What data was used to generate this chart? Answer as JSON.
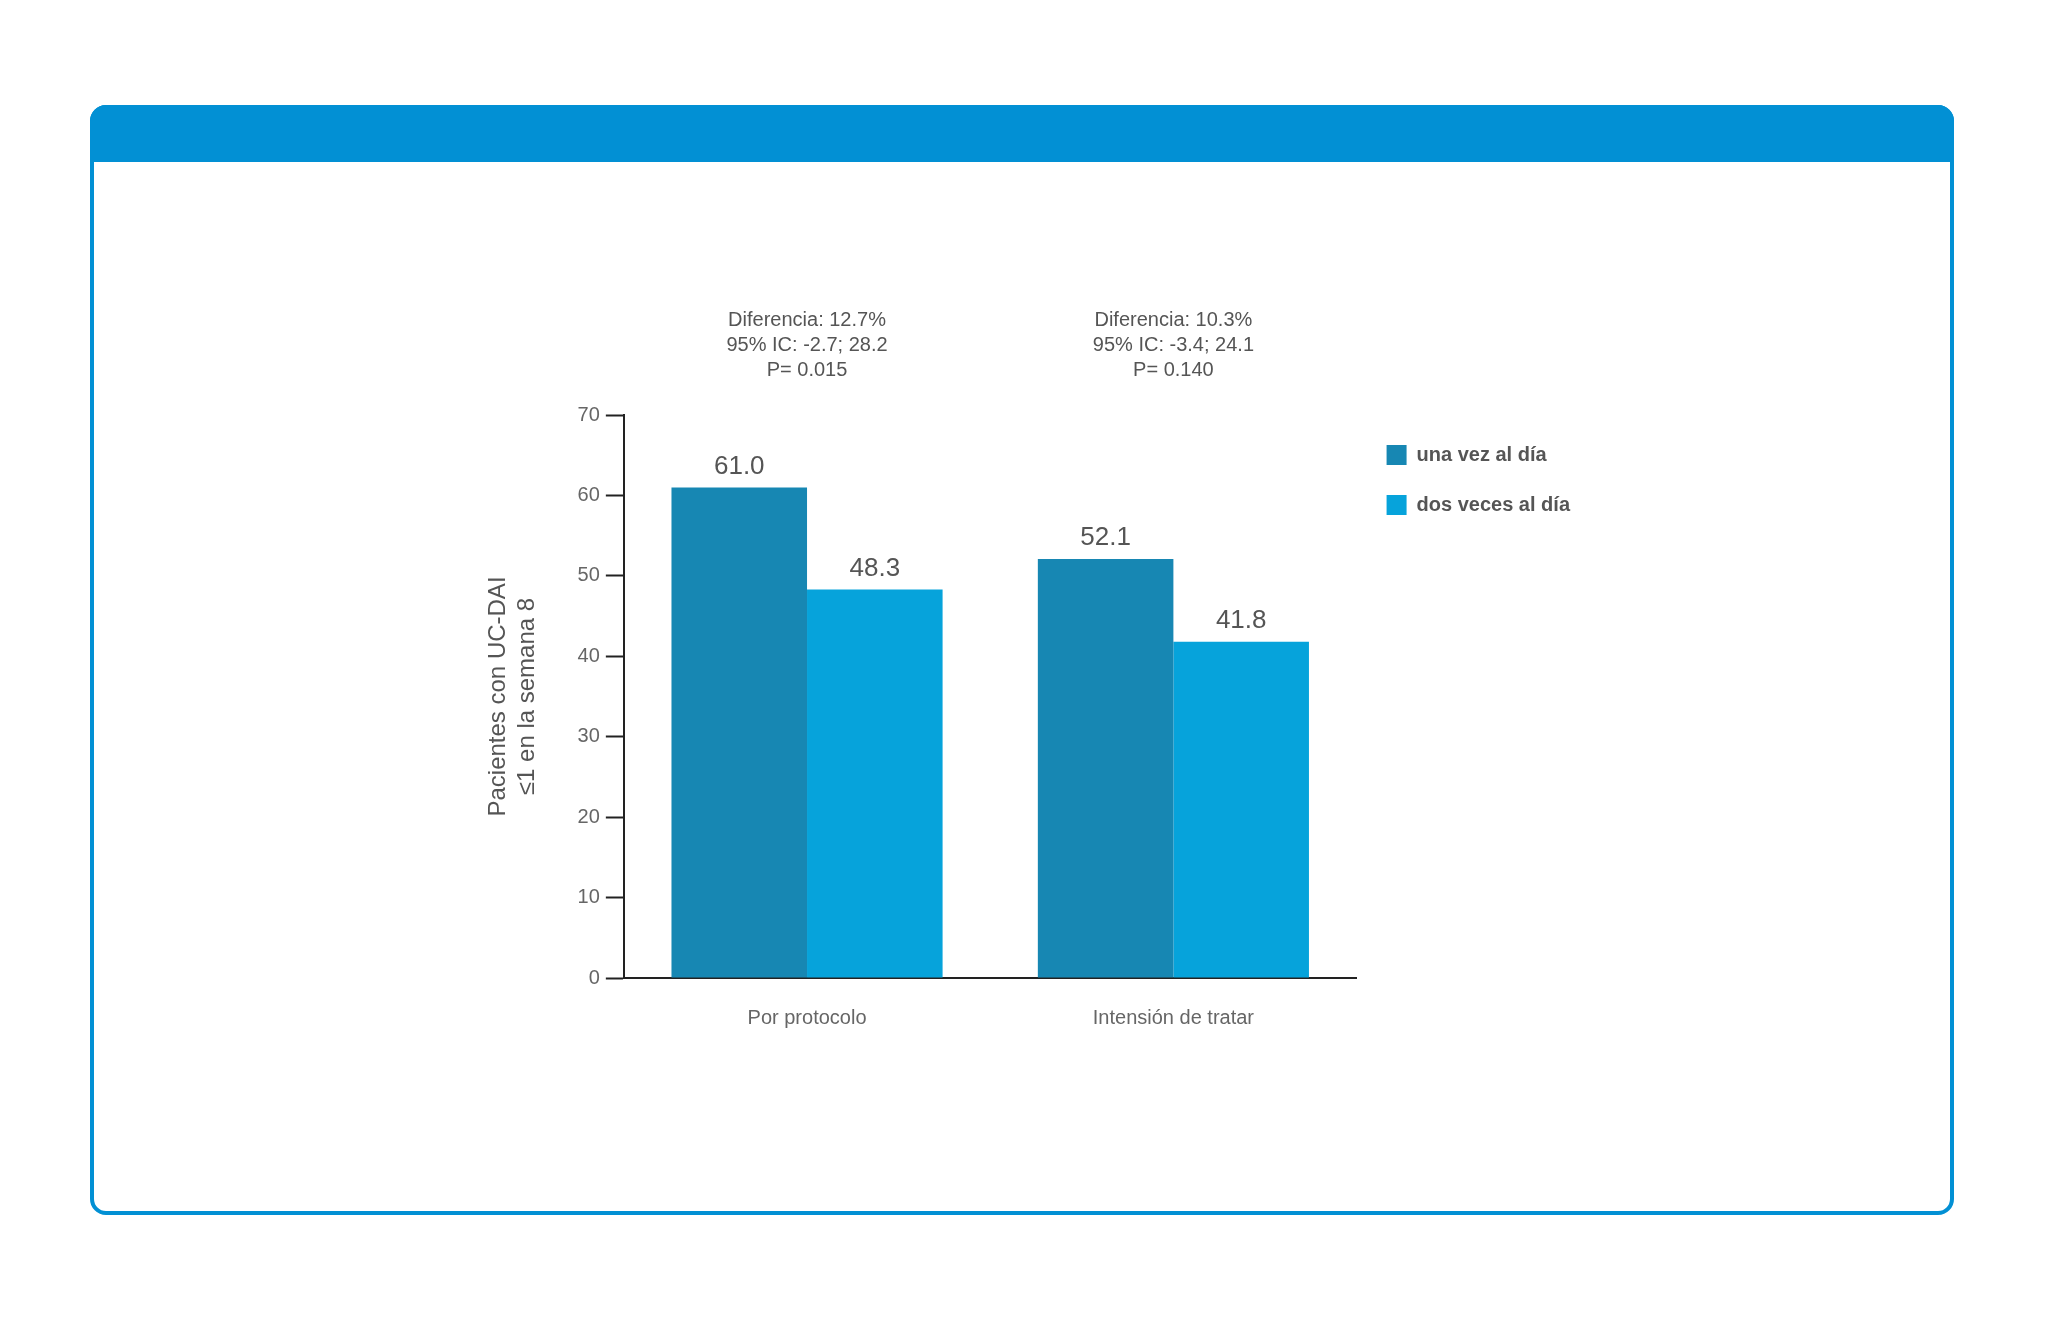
{
  "chart_data": {
    "type": "bar",
    "ylabel": "Pacientes con UC-DAI\n≤1 en la semana 8",
    "categories": [
      "Por protocolo",
      "Intensión de tratar"
    ],
    "series": [
      {
        "name": "una vez al día",
        "color": "#1787b3",
        "values": [
          61.0,
          52.1
        ],
        "value_labels": [
          "61.0",
          "52.1"
        ]
      },
      {
        "name": "dos veces al día",
        "color": "#06a3db",
        "values": [
          48.3,
          41.8
        ],
        "value_labels": [
          "48.3",
          "41.8"
        ]
      }
    ],
    "ylim": [
      0,
      70
    ],
    "yticks": [
      0,
      10,
      20,
      30,
      40,
      50,
      60,
      70
    ],
    "grid": false,
    "legend": "top right",
    "annotations": [
      "Diferencia: 12.7%\n95% IC: -2.7; 28.2\nP= 0.015",
      "Diferencia: 10.3%\n95% IC: -3.4; 24.1\nP= 0.140"
    ]
  }
}
